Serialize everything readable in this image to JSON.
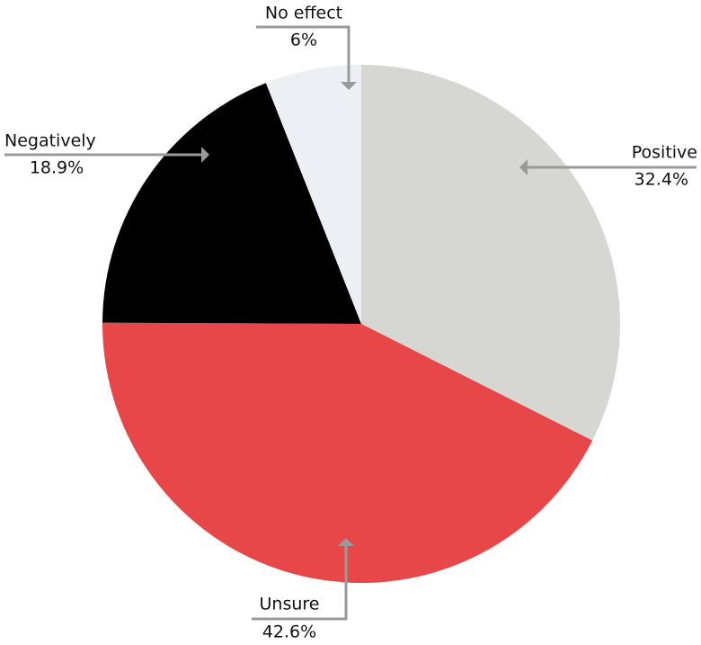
{
  "chart_data": {
    "type": "pie",
    "categories": [
      "Positive",
      "Unsure",
      "Negatively",
      "No effect"
    ],
    "values": [
      32.4,
      42.6,
      18.9,
      6
    ],
    "value_labels": [
      "32.4%",
      "42.6%",
      "18.9%",
      "6%"
    ],
    "colors": [
      "#d6d6d2",
      "#e8474a",
      "#000000",
      "#eceff4"
    ]
  }
}
